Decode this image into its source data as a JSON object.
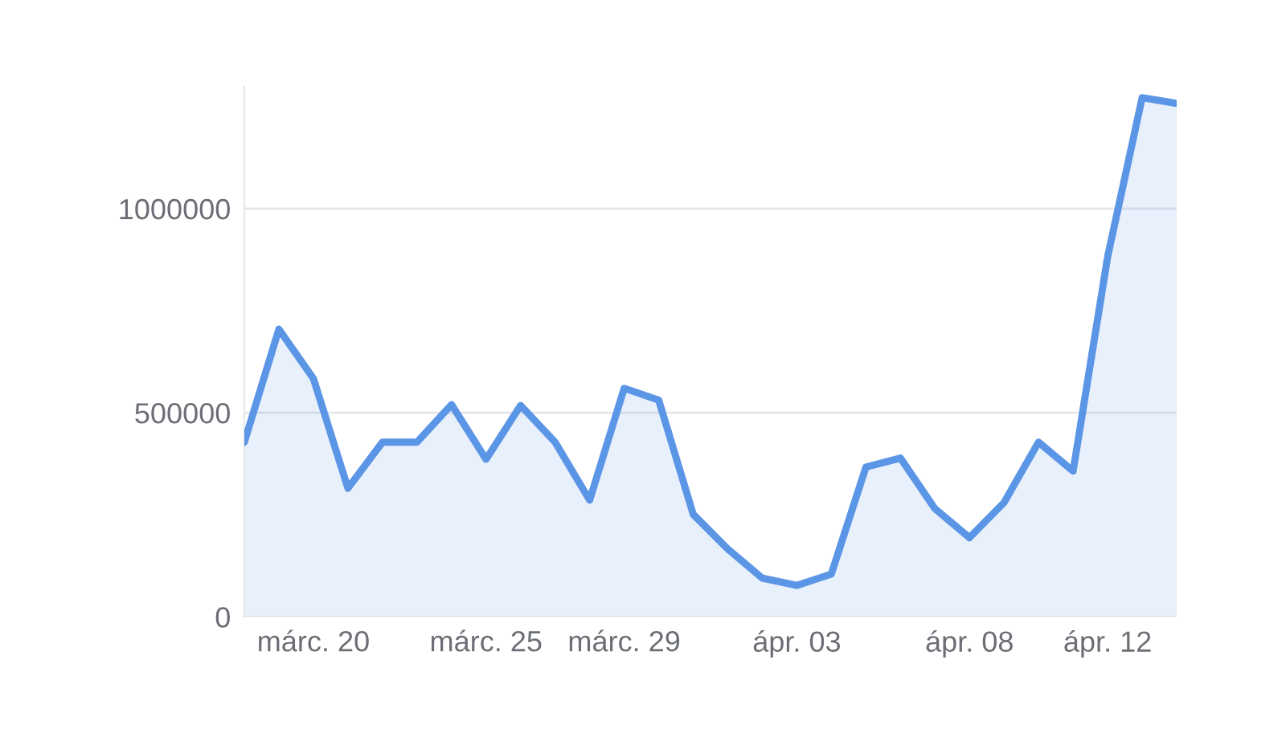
{
  "chart_data": {
    "type": "area",
    "categories": [
      null,
      null,
      "márc. 20",
      null,
      null,
      null,
      null,
      "márc. 25",
      null,
      null,
      null,
      "márc. 29",
      null,
      null,
      null,
      null,
      "ápr. 03",
      null,
      null,
      null,
      null,
      "ápr. 08",
      null,
      null,
      null,
      "ápr. 12",
      null,
      null
    ],
    "series": [
      {
        "color": "#5b95e6",
        "values": [
          428000,
          705000,
          584000,
          315000,
          428000,
          428000,
          520000,
          386000,
          518000,
          428000,
          286000,
          560000,
          531000,
          251000,
          166000,
          95000,
          77000,
          105000,
          367000,
          389000,
          265000,
          194000,
          280000,
          428000,
          357000,
          882000,
          1272000,
          1258000
        ]
      }
    ],
    "ylim": [
      0,
      1300000
    ],
    "yticks": [
      0,
      500000,
      1000000
    ],
    "grid": "y"
  }
}
